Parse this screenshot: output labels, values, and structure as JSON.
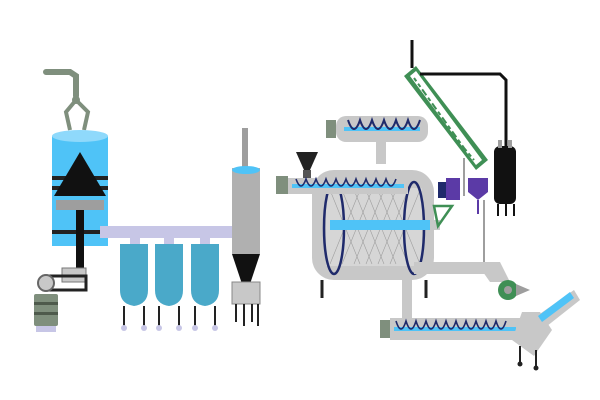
{
  "diagram": {
    "type": "process-flow-illustration",
    "components": [
      "crane-grab",
      "feed-hopper",
      "belt-drive-motor",
      "distribution-pipe",
      "storage-silo",
      "storage-silo",
      "storage-silo",
      "cyclone-separator",
      "screw-feeder",
      "rotary-drum",
      "inclined-conveyor",
      "condenser-column",
      "filter-unit",
      "exhaust-fan",
      "discharge-screw-conveyor",
      "chute"
    ],
    "colors": {
      "vessel_blue": "#4fc3f7",
      "silo_blue": "#4aa9c9",
      "steel_gray": "#c8c8c8",
      "dark_gray": "#9e9e9e",
      "pipe_lavender": "#c7c6e6",
      "green_conveyor": "#3f8f55",
      "black": "#111111",
      "navy_spiral": "#1f2a6b",
      "purple_unit": "#5b3aa6",
      "sage": "#7f8f7d"
    }
  }
}
